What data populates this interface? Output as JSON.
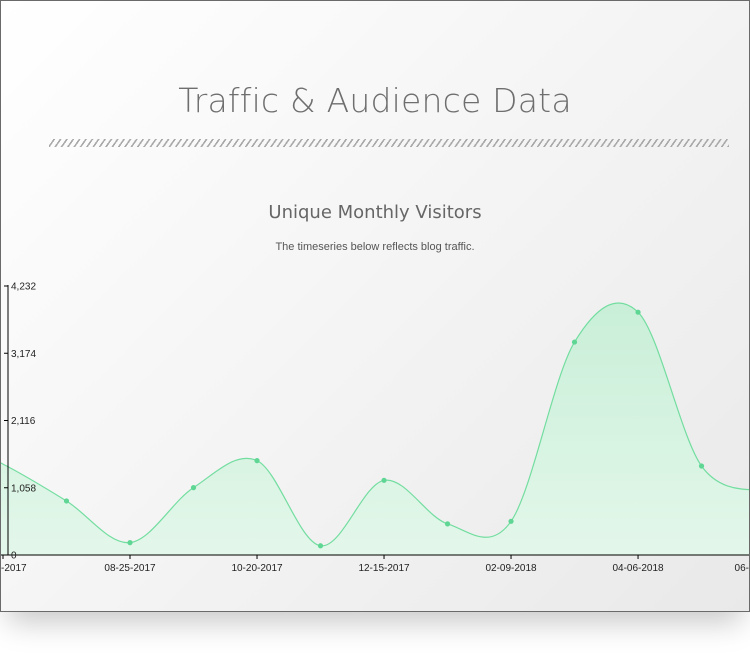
{
  "page": {
    "title": "Traffic & Audience Data"
  },
  "chart_data": {
    "type": "area",
    "title": "Unique Monthly Visitors",
    "subtitle": "The timeseries below reflects blog traffic.",
    "xlabel": "",
    "ylabel": "",
    "ylim": [
      0,
      4232
    ],
    "yticks": [
      "0",
      "1,058",
      "2,116",
      "3,174",
      "4,232"
    ],
    "ytick_values": [
      0,
      1058,
      2116,
      3174,
      4232
    ],
    "xticks": [
      "-2017",
      "08-25-2017",
      "10-20-2017",
      "12-15-2017",
      "02-09-2018",
      "04-06-2018",
      "06-"
    ],
    "grid": false,
    "colors": {
      "line": "#73dda0",
      "fill_top": "#c9efd8",
      "fill_bottom": "#e3f7ea",
      "point": "#5fd694"
    },
    "points": [
      {
        "x": "2017-06-30",
        "y": 1430
      },
      {
        "x": "2017-07-28",
        "y": 850
      },
      {
        "x": "2017-08-25",
        "y": 195
      },
      {
        "x": "2017-09-22",
        "y": 1060
      },
      {
        "x": "2017-10-20",
        "y": 1485
      },
      {
        "x": "2017-11-17",
        "y": 145
      },
      {
        "x": "2017-12-15",
        "y": 1175
      },
      {
        "x": "2018-01-12",
        "y": 490
      },
      {
        "x": "2018-02-09",
        "y": 530
      },
      {
        "x": "2018-03-09",
        "y": 3350
      },
      {
        "x": "2018-04-06",
        "y": 3820
      },
      {
        "x": "2018-05-04",
        "y": 1400
      }
    ]
  }
}
